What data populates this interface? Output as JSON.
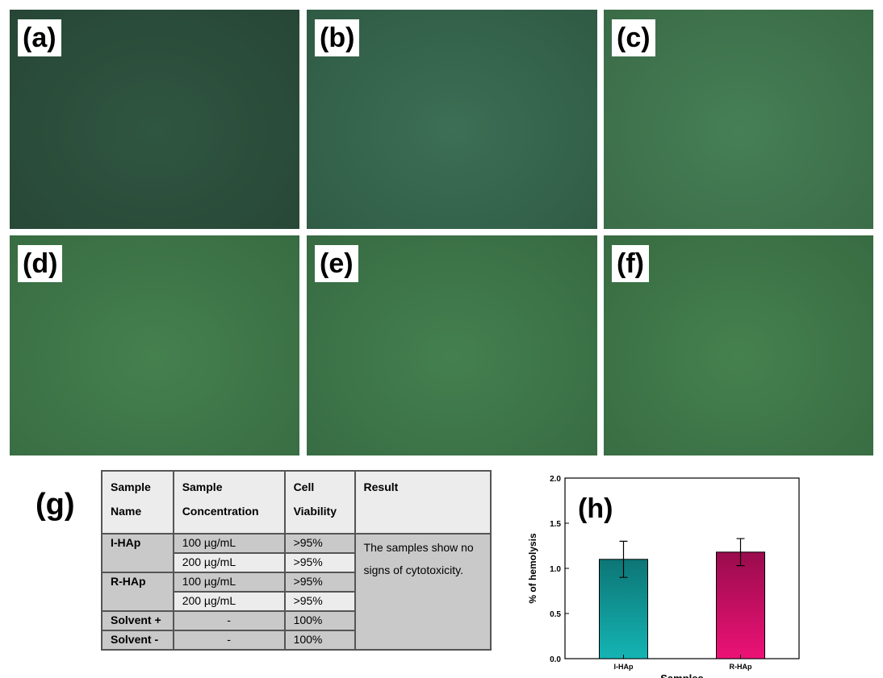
{
  "panels": [
    {
      "label": "(a)"
    },
    {
      "label": "(b)"
    },
    {
      "label": "(c)"
    },
    {
      "label": "(d)"
    },
    {
      "label": "(e)"
    },
    {
      "label": "(f)"
    }
  ],
  "table": {
    "label": "(g)",
    "header": [
      "Sample Name",
      "Sample Concentration",
      "Cell Viability",
      "Result"
    ],
    "groups": [
      {
        "name": "I-HAp",
        "entries": [
          [
            "100 µg/mL",
            ">95%"
          ],
          [
            "200 µg/mL",
            ">95%"
          ]
        ]
      },
      {
        "name": "R-HAp",
        "entries": [
          [
            "100 µg/mL",
            ">95%"
          ],
          [
            "200 µg/mL",
            ">95%"
          ]
        ]
      },
      {
        "name": "Solvent +",
        "entries": [
          [
            "-",
            "100%"
          ]
        ]
      },
      {
        "name": "Solvent -",
        "entries": [
          [
            "-",
            "100%"
          ]
        ]
      }
    ],
    "result": "The samples show no signs of cytotoxicity."
  },
  "chart_data": {
    "type": "bar",
    "label": "(h)",
    "y_label": "% of hemolysis",
    "x_label": "Samples",
    "categories": [
      "I-HAp",
      "R-HAp"
    ],
    "values": [
      1.1,
      1.18
    ],
    "errors": [
      0.2,
      0.15
    ],
    "colors": [
      "#14b4b4",
      "#ec1276"
    ],
    "ylim": [
      0,
      2
    ],
    "yticks": [
      {
        "value": 0,
        "label": "0.0"
      },
      {
        "value": 0.5,
        "label": "0.5"
      },
      {
        "value": 1,
        "label": "1.0"
      },
      {
        "value": 1.5,
        "label": "1.5"
      },
      {
        "value": 2,
        "label": "2.0"
      }
    ]
  }
}
